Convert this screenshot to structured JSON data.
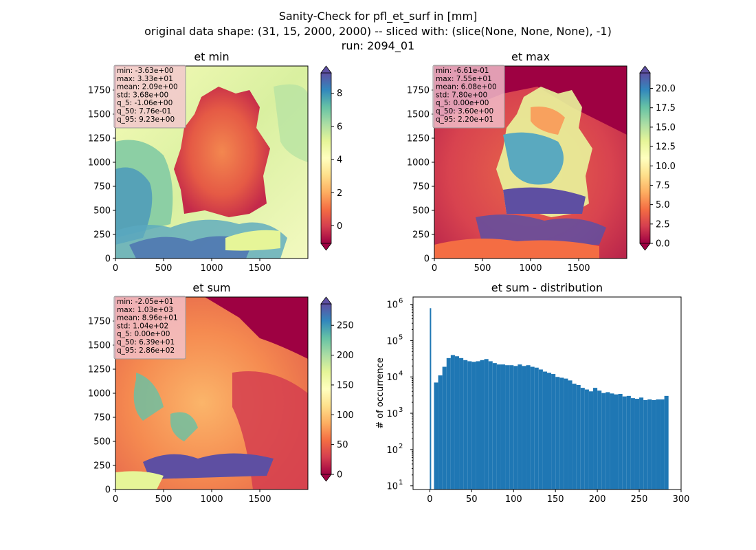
{
  "figure": {
    "suptitle": [
      "Sanity-Check for pfl_et_surf in [mm]",
      "original data shape: (31, 15, 2000, 2000) -- sliced with: (slice(None, None, None), -1)",
      "run: 2094_01"
    ]
  },
  "chart_data": [
    {
      "type": "heatmap",
      "title": "et min",
      "colormap": "Spectral",
      "xlim": [
        0,
        2000
      ],
      "ylim": [
        0,
        2000
      ],
      "xticks": [
        "0",
        "500",
        "1000",
        "1500"
      ],
      "yticks": [
        "0",
        "250",
        "500",
        "750",
        "1000",
        "1250",
        "1500",
        "1750"
      ],
      "colorbar": {
        "range": [
          -1.06,
          9.23
        ],
        "ticks": [
          0,
          2,
          4,
          6,
          8
        ]
      },
      "stats": [
        "min: -3.63e+00",
        "max: 3.33e+01",
        "mean: 2.09e+00",
        "std: 3.68e+00",
        "q_5: -1.06e+00",
        "q_50: 7.76e-01",
        "q_95: 9.23e+00"
      ]
    },
    {
      "type": "heatmap",
      "title": "et max",
      "colormap": "Spectral",
      "xlim": [
        0,
        2000
      ],
      "ylim": [
        0,
        2000
      ],
      "xticks": [
        "0",
        "500",
        "1000",
        "1500"
      ],
      "yticks": [
        "0",
        "250",
        "500",
        "750",
        "1000",
        "1250",
        "1500",
        "1750"
      ],
      "colorbar": {
        "range": [
          0,
          22.0
        ],
        "ticks": [
          "0.0",
          "2.5",
          "5.0",
          "7.5",
          "10.0",
          "12.5",
          "15.0",
          "17.5",
          "20.0"
        ]
      },
      "stats": [
        "min: -6.61e-01",
        "max: 7.55e+01",
        "mean: 6.08e+00",
        "std: 7.80e+00",
        "q_5: 0.00e+00",
        "q_50: 3.60e+00",
        "q_95: 2.20e+01"
      ]
    },
    {
      "type": "heatmap",
      "title": "et sum",
      "colormap": "Spectral",
      "xlim": [
        0,
        2000
      ],
      "ylim": [
        0,
        2000
      ],
      "xticks": [
        "0",
        "500",
        "1000",
        "1500"
      ],
      "yticks": [
        "0",
        "250",
        "500",
        "750",
        "1000",
        "1250",
        "1500",
        "1750"
      ],
      "colorbar": {
        "range": [
          0,
          286
        ],
        "ticks": [
          0,
          50,
          100,
          150,
          200,
          250
        ]
      },
      "stats": [
        "min: -2.05e+01",
        "max: 1.03e+03",
        "mean: 8.96e+01",
        "std: 1.04e+02",
        "q_5: 0.00e+00",
        "q_50: 6.39e+01",
        "q_95: 2.86e+02"
      ]
    },
    {
      "type": "bar",
      "title": "et sum - distribution",
      "xlabel": "",
      "ylabel": "# of occurrence",
      "xlim": [
        -20,
        300
      ],
      "ylim_log10": [
        0.9,
        6.2
      ],
      "yscale": "log",
      "xticks": [
        0,
        50,
        100,
        150,
        200,
        250,
        300
      ],
      "yticks": [
        {
          "base": "10",
          "exp": "1",
          "log10": 1
        },
        {
          "base": "10",
          "exp": "2",
          "log10": 2
        },
        {
          "base": "10",
          "exp": "3",
          "log10": 3
        },
        {
          "base": "10",
          "exp": "4",
          "log10": 4
        },
        {
          "base": "10",
          "exp": "5",
          "log10": 5
        },
        {
          "base": "10",
          "exp": "6",
          "log10": 6
        }
      ],
      "color": "#1f77b4",
      "bins": {
        "x": [
          0,
          5,
          10,
          15,
          20,
          25,
          30,
          35,
          40,
          45,
          50,
          55,
          60,
          65,
          70,
          75,
          80,
          85,
          90,
          95,
          100,
          105,
          110,
          115,
          120,
          125,
          130,
          135,
          140,
          145,
          150,
          155,
          160,
          165,
          170,
          175,
          180,
          185,
          190,
          195,
          200,
          205,
          210,
          215,
          220,
          225,
          230,
          235,
          240,
          245,
          250,
          255,
          260,
          265,
          270,
          275,
          280,
          285
        ],
        "counts": [
          780000,
          7000,
          11000,
          19000,
          33000,
          40000,
          37000,
          33000,
          29000,
          27000,
          26000,
          27000,
          29000,
          31000,
          27000,
          24000,
          22000,
          22000,
          21000,
          21000,
          20000,
          22000,
          20000,
          21000,
          19000,
          18000,
          16000,
          14000,
          13000,
          12000,
          10000,
          9500,
          9000,
          8000,
          6500,
          6000,
          5000,
          4500,
          4000,
          5000,
          4200,
          3600,
          3800,
          3500,
          3300,
          3400,
          2900,
          3000,
          2600,
          2500,
          2700,
          2300,
          2400,
          2300,
          2400,
          2400,
          3000,
          8
        ]
      }
    }
  ]
}
